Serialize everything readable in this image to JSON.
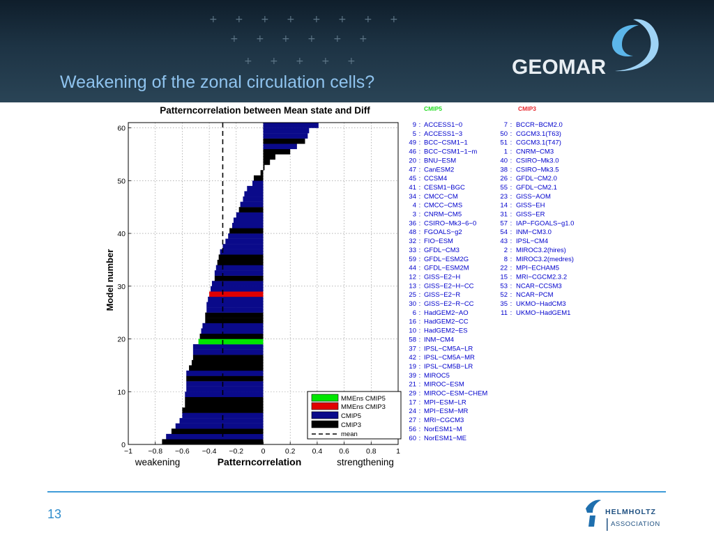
{
  "slide": {
    "title": "Weakening of the zonal circulation cells?",
    "page_number": "13",
    "logo_top": "GEOMAR",
    "logo_bottom_line1": "HELMHOLTZ",
    "logo_bottom_line2": "ASSOCIATION",
    "colors": {
      "header_bg": "#1b3041",
      "title": "#8fc3ee",
      "accent": "#3e9bd8",
      "cmip5_label": "#22dd22",
      "cmip3_label": "#e8282e",
      "model_text": "#0000cc"
    }
  },
  "chart_data": {
    "type": "bar",
    "orientation": "horizontal",
    "title": "Patterncorrelation between Mean state and Diff",
    "xlabel": "Patterncorrelation",
    "xlabel_left": "weakening",
    "xlabel_right": "strengthening",
    "ylabel": "Model number",
    "xlim": [
      -1,
      1
    ],
    "ylim": [
      0,
      61
    ],
    "xticks": [
      "−1",
      "−0.8",
      "−0.6",
      "−0.4",
      "−0.2",
      "0",
      "0.2",
      "0.4",
      "0.6",
      "0.8",
      "1"
    ],
    "yticks": [
      "0",
      "10",
      "20",
      "30",
      "40",
      "50",
      "60"
    ],
    "grid": true,
    "mean": -0.3,
    "series_colors": {
      "MMEns CMIP5": "#00e600",
      "MMEns CMIP3": "#e00000",
      "CMIP5": "#0a0a8a",
      "CMIP3": "#000000"
    },
    "bars": [
      {
        "v": -0.75,
        "s": "CMIP3"
      },
      {
        "v": -0.72,
        "s": "CMIP5"
      },
      {
        "v": -0.68,
        "s": "CMIP3"
      },
      {
        "v": -0.65,
        "s": "CMIP5"
      },
      {
        "v": -0.62,
        "s": "CMIP5"
      },
      {
        "v": -0.6,
        "s": "CMIP5"
      },
      {
        "v": -0.6,
        "s": "CMIP3"
      },
      {
        "v": -0.58,
        "s": "CMIP3"
      },
      {
        "v": -0.58,
        "s": "CMIP3"
      },
      {
        "v": -0.58,
        "s": "CMIP5"
      },
      {
        "v": -0.57,
        "s": "CMIP5"
      },
      {
        "v": -0.57,
        "s": "CMIP5"
      },
      {
        "v": -0.57,
        "s": "CMIP3"
      },
      {
        "v": -0.57,
        "s": "CMIP5"
      },
      {
        "v": -0.55,
        "s": "CMIP3"
      },
      {
        "v": -0.53,
        "s": "CMIP3"
      },
      {
        "v": -0.52,
        "s": "CMIP3"
      },
      {
        "v": -0.52,
        "s": "CMIP5"
      },
      {
        "v": -0.52,
        "s": "CMIP5"
      },
      {
        "v": -0.48,
        "s": "MMEns CMIP5"
      },
      {
        "v": -0.47,
        "s": "CMIP3"
      },
      {
        "v": -0.46,
        "s": "CMIP5"
      },
      {
        "v": -0.45,
        "s": "CMIP5"
      },
      {
        "v": -0.43,
        "s": "CMIP3"
      },
      {
        "v": -0.43,
        "s": "CMIP3"
      },
      {
        "v": -0.42,
        "s": "CMIP5"
      },
      {
        "v": -0.42,
        "s": "CMIP5"
      },
      {
        "v": -0.41,
        "s": "CMIP5"
      },
      {
        "v": -0.4,
        "s": "MMEns CMIP3"
      },
      {
        "v": -0.39,
        "s": "CMIP5"
      },
      {
        "v": -0.38,
        "s": "CMIP5"
      },
      {
        "v": -0.36,
        "s": "CMIP3"
      },
      {
        "v": -0.36,
        "s": "CMIP5"
      },
      {
        "v": -0.35,
        "s": "CMIP5"
      },
      {
        "v": -0.34,
        "s": "CMIP3"
      },
      {
        "v": -0.33,
        "s": "CMIP3"
      },
      {
        "v": -0.32,
        "s": "CMIP5"
      },
      {
        "v": -0.3,
        "s": "CMIP5"
      },
      {
        "v": -0.28,
        "s": "CMIP5"
      },
      {
        "v": -0.26,
        "s": "CMIP5"
      },
      {
        "v": -0.25,
        "s": "CMIP3"
      },
      {
        "v": -0.23,
        "s": "CMIP5"
      },
      {
        "v": -0.22,
        "s": "CMIP5"
      },
      {
        "v": -0.2,
        "s": "CMIP5"
      },
      {
        "v": -0.18,
        "s": "CMIP3"
      },
      {
        "v": -0.17,
        "s": "CMIP5"
      },
      {
        "v": -0.15,
        "s": "CMIP5"
      },
      {
        "v": -0.14,
        "s": "CMIP5"
      },
      {
        "v": -0.12,
        "s": "CMIP5"
      },
      {
        "v": -0.08,
        "s": "CMIP5"
      },
      {
        "v": -0.07,
        "s": "CMIP3"
      },
      {
        "v": -0.02,
        "s": "CMIP3"
      },
      {
        "v": 0.01,
        "s": "CMIP3"
      },
      {
        "v": 0.05,
        "s": "CMIP3"
      },
      {
        "v": 0.09,
        "s": "CMIP3"
      },
      {
        "v": 0.2,
        "s": "CMIP3"
      },
      {
        "v": 0.25,
        "s": "CMIP5"
      },
      {
        "v": 0.31,
        "s": "CMIP3"
      },
      {
        "v": 0.33,
        "s": "CMIP5"
      },
      {
        "v": 0.34,
        "s": "CMIP5"
      },
      {
        "v": 0.41,
        "s": "CMIP5"
      }
    ],
    "legend": {
      "location": "lower-right",
      "entries": [
        "MMEns CMIP5",
        "MMEns CMIP3",
        "CMIP5",
        "CMIP3",
        "mean"
      ]
    },
    "cmip5_header": "CMIP5",
    "cmip3_header": "CMIP3",
    "cmip5_models": [
      {
        "num": "9",
        "name": "ACCESS1−0"
      },
      {
        "num": "5",
        "name": "ACCESS1−3"
      },
      {
        "num": "49",
        "name": "BCC−CSM1−1"
      },
      {
        "num": "46",
        "name": "BCC−CSM1−1−m"
      },
      {
        "num": "20",
        "name": "BNU−ESM"
      },
      {
        "num": "47",
        "name": "CanESM2"
      },
      {
        "num": "45",
        "name": "CCSM4"
      },
      {
        "num": "41",
        "name": "CESM1−BGC"
      },
      {
        "num": "34",
        "name": "CMCC−CM"
      },
      {
        "num": "4",
        "name": "CMCC−CMS"
      },
      {
        "num": "3",
        "name": "CNRM−CM5"
      },
      {
        "num": "36",
        "name": "CSIRO−Mk3−6−0"
      },
      {
        "num": "48",
        "name": "FGOALS−g2"
      },
      {
        "num": "32",
        "name": "FIO−ESM"
      },
      {
        "num": "33",
        "name": "GFDL−CM3"
      },
      {
        "num": "59",
        "name": "GFDL−ESM2G"
      },
      {
        "num": "44",
        "name": "GFDL−ESM2M"
      },
      {
        "num": "12",
        "name": "GISS−E2−H"
      },
      {
        "num": "13",
        "name": "GISS−E2−H−CC"
      },
      {
        "num": "25",
        "name": "GISS−E2−R"
      },
      {
        "num": "30",
        "name": "GISS−E2−R−CC"
      },
      {
        "num": "6",
        "name": "HadGEM2−AO"
      },
      {
        "num": "16",
        "name": "HadGEM2−CC"
      },
      {
        "num": "10",
        "name": "HadGEM2−ES"
      },
      {
        "num": "58",
        "name": "INM−CM4"
      },
      {
        "num": "37",
        "name": "IPSL−CM5A−LR"
      },
      {
        "num": "42",
        "name": "IPSL−CM5A−MR"
      },
      {
        "num": "19",
        "name": "IPSL−CM5B−LR"
      },
      {
        "num": "39",
        "name": "MIROC5"
      },
      {
        "num": "21",
        "name": "MIROC−ESM"
      },
      {
        "num": "29",
        "name": "MIROC−ESM−CHEM"
      },
      {
        "num": "17",
        "name": "MPI−ESM−LR"
      },
      {
        "num": "24",
        "name": "MPI−ESM−MR"
      },
      {
        "num": "27",
        "name": "MRI−CGCM3"
      },
      {
        "num": "56",
        "name": "NorESM1−M"
      },
      {
        "num": "60",
        "name": "NorESM1−ME"
      }
    ],
    "cmip3_models": [
      {
        "num": "7",
        "name": "BCCR−BCM2.0"
      },
      {
        "num": "50",
        "name": "CGCM3.1(T63)"
      },
      {
        "num": "51",
        "name": "CGCM3.1(T47)"
      },
      {
        "num": "1",
        "name": "CNRM−CM3"
      },
      {
        "num": "40",
        "name": "CSIRO−Mk3.0"
      },
      {
        "num": "38",
        "name": "CSIRO−Mk3.5"
      },
      {
        "num": "26",
        "name": "GFDL−CM2.0"
      },
      {
        "num": "55",
        "name": "GFDL−CM2.1"
      },
      {
        "num": "23",
        "name": "GISS−AOM"
      },
      {
        "num": "14",
        "name": "GISS−EH"
      },
      {
        "num": "31",
        "name": "GISS−ER"
      },
      {
        "num": "57",
        "name": "IAP−FGOALS−g1.0"
      },
      {
        "num": "54",
        "name": "INM−CM3.0"
      },
      {
        "num": "43",
        "name": "IPSL−CM4"
      },
      {
        "num": "2",
        "name": "MIROC3.2(hires)"
      },
      {
        "num": "8",
        "name": "MIROC3.2(medres)"
      },
      {
        "num": "22",
        "name": "MPI−ECHAM5"
      },
      {
        "num": "15",
        "name": "MRI−CGCM2.3.2"
      },
      {
        "num": "53",
        "name": "NCAR−CCSM3"
      },
      {
        "num": "52",
        "name": "NCAR−PCM"
      },
      {
        "num": "35",
        "name": "UKMO−HadCM3"
      },
      {
        "num": "11",
        "name": "UKMO−HadGEM1"
      }
    ]
  }
}
